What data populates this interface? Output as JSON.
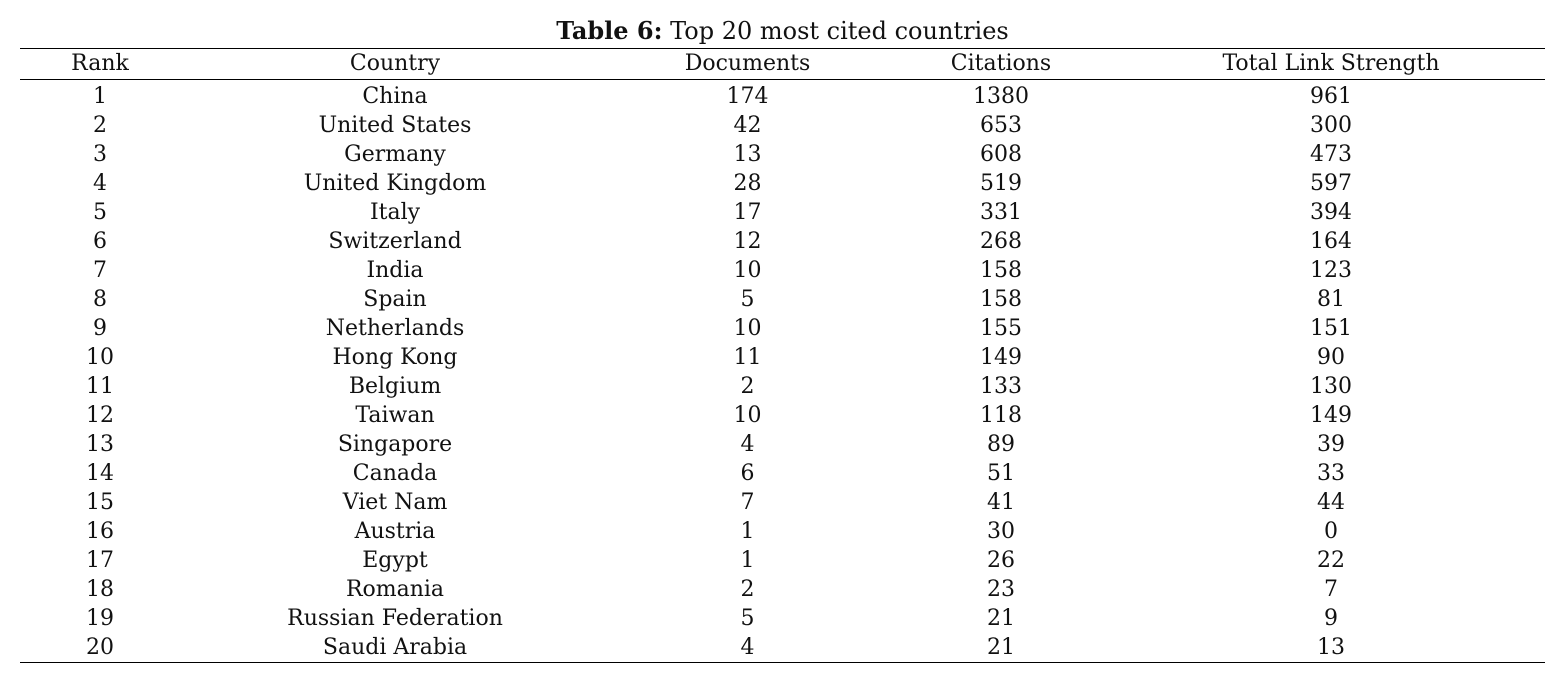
{
  "caption": {
    "label": "Table 6:",
    "text": "Top 20 most cited countries"
  },
  "table": {
    "columns": [
      "Rank",
      "Country",
      "Documents",
      "Citations",
      "Total Link Strength"
    ],
    "rows": [
      [
        "1",
        "China",
        "174",
        "1380",
        "961"
      ],
      [
        "2",
        "United States",
        "42",
        "653",
        "300"
      ],
      [
        "3",
        "Germany",
        "13",
        "608",
        "473"
      ],
      [
        "4",
        "United Kingdom",
        "28",
        "519",
        "597"
      ],
      [
        "5",
        "Italy",
        "17",
        "331",
        "394"
      ],
      [
        "6",
        "Switzerland",
        "12",
        "268",
        "164"
      ],
      [
        "7",
        "India",
        "10",
        "158",
        "123"
      ],
      [
        "8",
        "Spain",
        "5",
        "158",
        "81"
      ],
      [
        "9",
        "Netherlands",
        "10",
        "155",
        "151"
      ],
      [
        "10",
        "Hong Kong",
        "11",
        "149",
        "90"
      ],
      [
        "11",
        "Belgium",
        "2",
        "133",
        "130"
      ],
      [
        "12",
        "Taiwan",
        "10",
        "118",
        "149"
      ],
      [
        "13",
        "Singapore",
        "4",
        "89",
        "39"
      ],
      [
        "14",
        "Canada",
        "6",
        "51",
        "33"
      ],
      [
        "15",
        "Viet Nam",
        "7",
        "41",
        "44"
      ],
      [
        "16",
        "Austria",
        "1",
        "30",
        "0"
      ],
      [
        "17",
        "Egypt",
        "1",
        "26",
        "22"
      ],
      [
        "18",
        "Romania",
        "2",
        "23",
        "7"
      ],
      [
        "19",
        "Russian Federation",
        "5",
        "21",
        "9"
      ],
      [
        "20",
        "Saudi Arabia",
        "4",
        "21",
        "13"
      ]
    ]
  }
}
